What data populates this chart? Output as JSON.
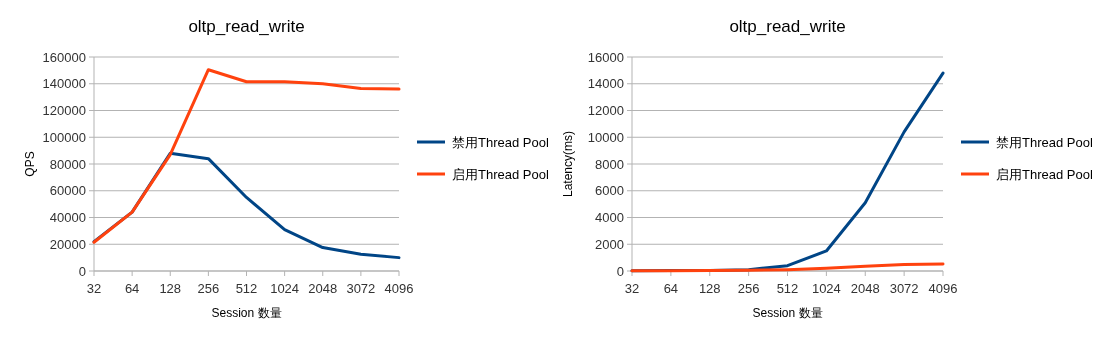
{
  "chart_data": [
    {
      "type": "line",
      "title": "oltp_read_write",
      "xlabel": "Session 数量",
      "ylabel": "QPS",
      "categories": [
        "32",
        "64",
        "128",
        "256",
        "512",
        "1024",
        "2048",
        "3072",
        "4096"
      ],
      "ylim": [
        0,
        160000
      ],
      "yticks": [
        0,
        20000,
        40000,
        60000,
        80000,
        100000,
        120000,
        140000,
        160000
      ],
      "grid": "y",
      "legend": "right",
      "series": [
        {
          "name": "禁用Thread Pool",
          "color": "#004586",
          "values": [
            22000,
            44000,
            88000,
            84000,
            55000,
            31000,
            17500,
            12500,
            10000
          ]
        },
        {
          "name": "启用Thread Pool",
          "color": "#ff420e",
          "values": [
            21500,
            44000,
            87000,
            150500,
            141500,
            141500,
            140000,
            136500,
            136000
          ]
        }
      ]
    },
    {
      "type": "line",
      "title": "oltp_read_write",
      "xlabel": "Session 数量",
      "ylabel": "Latency(ms)",
      "categories": [
        "32",
        "64",
        "128",
        "256",
        "512",
        "1024",
        "2048",
        "3072",
        "4096"
      ],
      "ylim": [
        0,
        16000
      ],
      "yticks": [
        0,
        2000,
        4000,
        6000,
        8000,
        10000,
        12000,
        14000,
        16000
      ],
      "grid": "y",
      "legend": "right",
      "series": [
        {
          "name": "禁用Thread Pool",
          "color": "#004586",
          "values": [
            20,
            30,
            40,
            100,
            400,
            1500,
            5100,
            10400,
            14800
          ]
        },
        {
          "name": "启用Thread Pool",
          "color": "#ff420e",
          "values": [
            10,
            20,
            30,
            60,
            100,
            200,
            350,
            480,
            520
          ]
        }
      ]
    }
  ]
}
